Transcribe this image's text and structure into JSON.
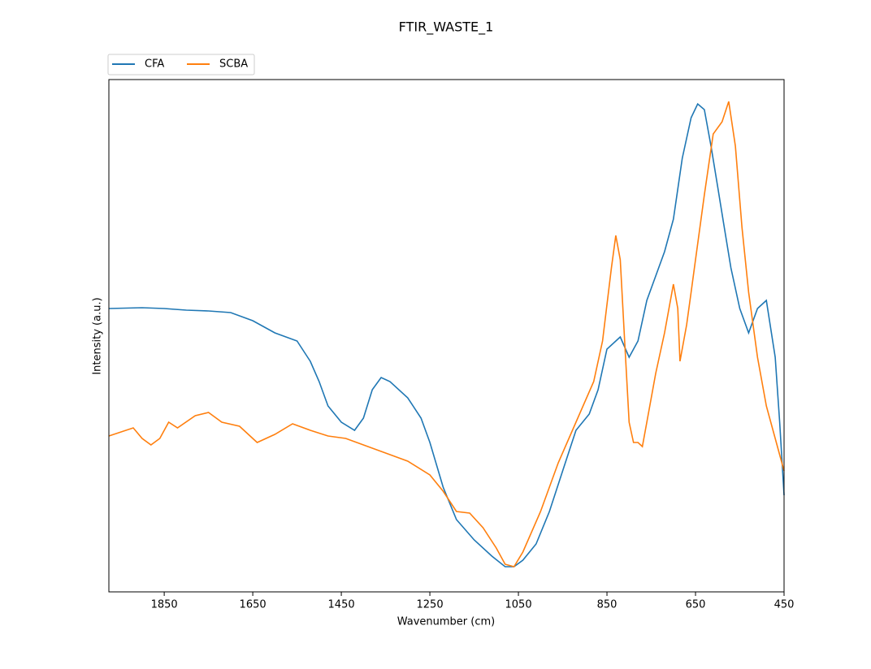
{
  "chart_data": {
    "type": "line",
    "title": "FTIR_WASTE_1",
    "xlabel": "Wavenumber (cm)",
    "ylabel": "Intensity (a.u.)",
    "xlim": [
      1975,
      450
    ],
    "xticks": [
      1850,
      1650,
      1450,
      1250,
      1050,
      850,
      650,
      450
    ],
    "ylim": [
      0,
      631
    ],
    "legend": "upper left outside",
    "series": [
      {
        "name": "CFA",
        "color": "#1f77b4",
        "x": [
          1975,
          1900,
          1850,
          1800,
          1750,
          1700,
          1650,
          1600,
          1550,
          1520,
          1500,
          1480,
          1450,
          1420,
          1400,
          1380,
          1360,
          1340,
          1300,
          1270,
          1250,
          1220,
          1190,
          1150,
          1110,
          1080,
          1060,
          1040,
          1010,
          980,
          950,
          920,
          890,
          870,
          850,
          820,
          800,
          780,
          760,
          740,
          720,
          700,
          680,
          660,
          645,
          630,
          615,
          600,
          585,
          570,
          550,
          530,
          510,
          490,
          470,
          460,
          450
        ],
        "values": [
          349,
          350,
          349,
          347,
          346,
          344,
          334,
          319,
          309,
          284,
          259,
          229,
          209,
          199,
          214,
          249,
          264,
          259,
          239,
          214,
          184,
          129,
          89,
          64,
          44,
          31,
          31,
          39,
          59,
          99,
          149,
          199,
          219,
          249,
          299,
          314,
          289,
          309,
          359,
          389,
          419,
          459,
          534,
          584,
          601,
          594,
          549,
          499,
          449,
          399,
          349,
          319,
          349,
          359,
          289,
          209,
          119
        ]
      },
      {
        "name": "SCBA",
        "color": "#ff7f0e",
        "x": [
          1975,
          1920,
          1900,
          1880,
          1860,
          1840,
          1820,
          1780,
          1750,
          1720,
          1680,
          1640,
          1600,
          1560,
          1520,
          1480,
          1440,
          1400,
          1350,
          1300,
          1250,
          1220,
          1190,
          1160,
          1130,
          1100,
          1080,
          1060,
          1040,
          1000,
          960,
          920,
          880,
          860,
          840,
          830,
          820,
          810,
          800,
          790,
          780,
          770,
          760,
          740,
          720,
          700,
          690,
          685,
          670,
          660,
          650,
          630,
          610,
          590,
          575,
          560,
          545,
          530,
          510,
          490,
          470,
          450
        ],
        "values": [
          192,
          202,
          189,
          181,
          189,
          209,
          202,
          217,
          221,
          209,
          204,
          184,
          194,
          207,
          199,
          192,
          189,
          181,
          171,
          161,
          144,
          124,
          99,
          97,
          79,
          54,
          34,
          31,
          49,
          99,
          159,
          209,
          259,
          309,
          399,
          439,
          409,
          309,
          209,
          184,
          184,
          179,
          209,
          269,
          319,
          379,
          349,
          284,
          329,
          369,
          409,
          489,
          564,
          579,
          604,
          549,
          449,
          369,
          289,
          229,
          189,
          149
        ]
      }
    ]
  }
}
